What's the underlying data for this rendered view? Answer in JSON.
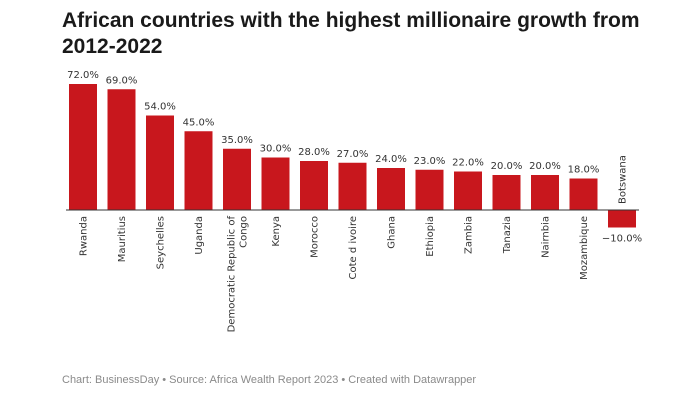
{
  "chart_data": {
    "type": "bar",
    "title": "African countries with the highest millionaire growth from 2012-2022",
    "categories": [
      "Rwanda",
      "Mauritius",
      "Seychelles",
      "Uganda",
      "Democratic Republic of Congo",
      "Kenya",
      "Morocco",
      "Cote d ivoire",
      "Ghana",
      "Ethiopia",
      "Zambia",
      "Tanazia",
      "Nairnbia",
      "Mozambique",
      "Botswana"
    ],
    "values": [
      72.0,
      69.0,
      54.0,
      45.0,
      35.0,
      30.0,
      28.0,
      27.0,
      24.0,
      23.0,
      22.0,
      20.0,
      20.0,
      18.0,
      -10.0
    ],
    "value_labels": [
      "72.0%",
      "69.0%",
      "54.0%",
      "45.0%",
      "35.0%",
      "30.0%",
      "28.0%",
      "27.0%",
      "24.0%",
      "23.0%",
      "22.0%",
      "20.0%",
      "20.0%",
      "18.0%",
      "−10.0%"
    ],
    "category_lines": [
      [
        "Rwanda"
      ],
      [
        "Mauritius"
      ],
      [
        "Seychelles"
      ],
      [
        "Uganda"
      ],
      [
        "Democratic Republic of",
        "Congo"
      ],
      [
        "Kenya"
      ],
      [
        "Morocco"
      ],
      [
        "Cote d ivoire"
      ],
      [
        "Ghana"
      ],
      [
        "Ethiopia"
      ],
      [
        "Zambia"
      ],
      [
        "Tanazia"
      ],
      [
        "Nairnbia"
      ],
      [
        "Mozambique"
      ],
      [
        "Botswana"
      ]
    ],
    "ylim": [
      -10,
      72
    ],
    "bar_color": "#c8171d",
    "grid": false
  },
  "footer": "Chart: BusinessDay • Source: Africa Wealth Report 2023 • Created with Datawrapper"
}
